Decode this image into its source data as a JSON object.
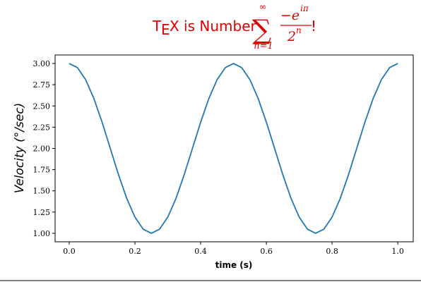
{
  "chart_data": {
    "type": "line",
    "title": {
      "t": "T",
      "e": "E",
      "rest": "X is Number",
      "sum": "∑",
      "upper": "∞",
      "lower": "n=1",
      "numerator": "−e",
      "numerator_exp": "iπ",
      "denominator": "2",
      "denominator_exp": "n",
      "end": "!"
    },
    "xlabel": "time (s)",
    "ylabel": "Velocity (°/sec)",
    "x": [
      0,
      0.025,
      0.05,
      0.075,
      0.1,
      0.125,
      0.15,
      0.175,
      0.2,
      0.225,
      0.25,
      0.275,
      0.3,
      0.325,
      0.35,
      0.375,
      0.4,
      0.425,
      0.45,
      0.475,
      0.5,
      0.525,
      0.55,
      0.575,
      0.6,
      0.625,
      0.65,
      0.675,
      0.7,
      0.725,
      0.75,
      0.775,
      0.8,
      0.825,
      0.85,
      0.875,
      0.9,
      0.925,
      0.95,
      0.975,
      1
    ],
    "series": [
      {
        "color": "#1f77b4",
        "values": [
          3,
          2.951,
          2.809,
          2.588,
          2.309,
          2,
          1.691,
          1.412,
          1.191,
          1.049,
          1,
          1.049,
          1.191,
          1.412,
          1.691,
          2,
          2.309,
          2.588,
          2.809,
          2.951,
          3,
          2.951,
          2.809,
          2.588,
          2.309,
          2,
          1.691,
          1.412,
          1.191,
          1.049,
          1,
          1.049,
          1.191,
          1.412,
          1.691,
          2,
          2.309,
          2.588,
          2.809,
          2.951,
          3
        ]
      }
    ],
    "xlim": [
      -0.043,
      1.047
    ],
    "ylim": [
      0.9,
      3.1
    ],
    "xticks": [
      {
        "value": 0,
        "label": "0.0"
      },
      {
        "value": 0.2,
        "label": "0.2"
      },
      {
        "value": 0.4,
        "label": "0.4"
      },
      {
        "value": 0.6,
        "label": "0.6"
      },
      {
        "value": 0.8,
        "label": "0.8"
      },
      {
        "value": 1,
        "label": "1.0"
      }
    ],
    "yticks": [
      {
        "value": 1,
        "label": "1.00"
      },
      {
        "value": 1.25,
        "label": "1.25"
      },
      {
        "value": 1.5,
        "label": "1.50"
      },
      {
        "value": 1.75,
        "label": "1.75"
      },
      {
        "value": 2,
        "label": "2.00"
      },
      {
        "value": 2.25,
        "label": "2.25"
      },
      {
        "value": 2.5,
        "label": "2.50"
      },
      {
        "value": 2.75,
        "label": "2.75"
      },
      {
        "value": 3,
        "label": "3.00"
      }
    ]
  }
}
